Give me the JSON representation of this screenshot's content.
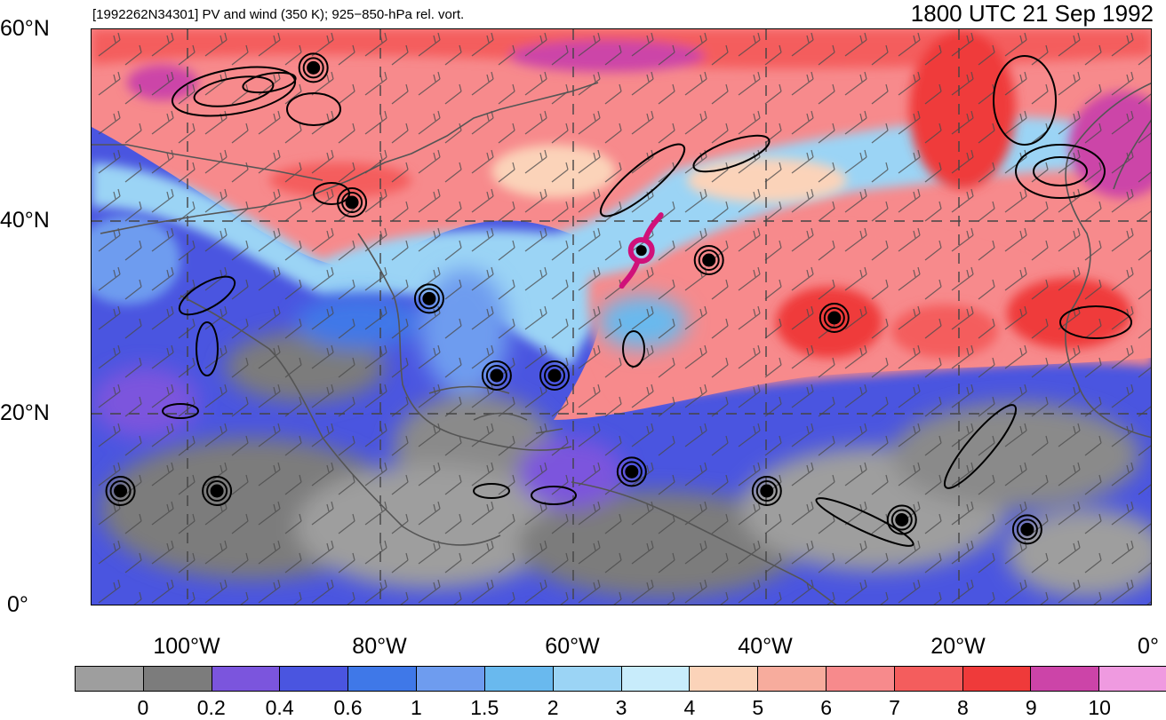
{
  "title_left": "[1992262N34301] PV and wind (350 K); 925−850-hPa rel. vort.",
  "title_right": "1800 UTC 21 Sep 1992",
  "lat_labels": [
    "60°N",
    "40°N",
    "20°N",
    "0°"
  ],
  "lon_labels": [
    "100°W",
    "80°W",
    "60°W",
    "40°W",
    "20°W",
    "0°"
  ],
  "colorbar": {
    "colors": [
      "#9e9e9e",
      "#7c7c7c",
      "#7b55dd",
      "#4a55e0",
      "#3f78e8",
      "#6e9cef",
      "#69b9ee",
      "#9bd4f5",
      "#c8ecfb",
      "#fbd3b9",
      "#f7ac9d",
      "#f78a8c",
      "#f45d5d",
      "#ef3a3a",
      "#cc44a8",
      "#ef9ae0"
    ],
    "levels": [
      "0",
      "0.2",
      "0.4",
      "0.6",
      "1",
      "1.5",
      "2",
      "3",
      "4",
      "5",
      "6",
      "7",
      "8",
      "9",
      "10"
    ]
  },
  "map": {
    "extent_lon": [
      -110,
      0
    ],
    "extent_lat": [
      0,
      60
    ],
    "storm_marker_color": "#d0117a",
    "storm_marker_lonlat": [
      -53,
      37
    ],
    "vorticity_centers_lonlat": [
      [
        -107,
        12
      ],
      [
        -97,
        12
      ],
      [
        -75,
        32
      ],
      [
        -68,
        24
      ],
      [
        -62,
        24
      ],
      [
        -54,
        14
      ],
      [
        -40,
        12
      ],
      [
        -33,
        30
      ],
      [
        -26,
        9
      ],
      [
        -13,
        8
      ],
      [
        -46,
        36
      ],
      [
        -83,
        42
      ],
      [
        -87,
        56
      ]
    ]
  }
}
